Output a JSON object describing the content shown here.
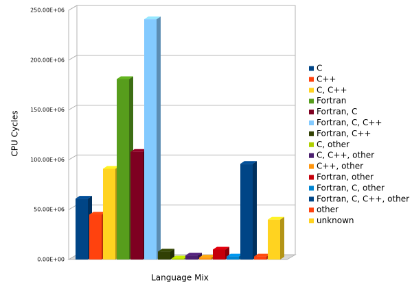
{
  "chart_data": {
    "type": "bar3d",
    "x_label": "Language Mix",
    "y_label": "CPU Cycles",
    "categories": [
      "C",
      "C++",
      "C, C++",
      "Fortran",
      "Fortran, C",
      "Fortran, C, C++",
      "Fortran, C++",
      "C, other",
      "C, C++, other",
      "C++, other",
      "Fortran, other",
      "Fortran, C, other",
      "Fortran, C, C++, other",
      "other",
      "unknown"
    ],
    "values": [
      61000000,
      45000000,
      91000000,
      181000000,
      108000000,
      241000000,
      8000000,
      1000000,
      4000000,
      2000000,
      10000000,
      3000000,
      96000000,
      3000000,
      40000000
    ],
    "colors": [
      "#004586",
      "#ff420e",
      "#ffd320",
      "#579d1c",
      "#7e0021",
      "#83caff",
      "#314004",
      "#aecf00",
      "#4b1f6f",
      "#ff950e",
      "#c5000b",
      "#0084d1",
      "#004586",
      "#ff420e",
      "#ffd320"
    ],
    "ylim": [
      0,
      250000000
    ],
    "yticks": [
      {
        "value": 0,
        "label": "0.00E+00"
      },
      {
        "value": 50000000,
        "label": "50.00E+06"
      },
      {
        "value": 100000000,
        "label": "100.00E+06"
      },
      {
        "value": 150000000,
        "label": "150.00E+06"
      },
      {
        "value": 200000000,
        "label": "200.00E+06"
      },
      {
        "value": 250000000,
        "label": "250.00E+06"
      }
    ],
    "grid": true,
    "legend": "right"
  }
}
